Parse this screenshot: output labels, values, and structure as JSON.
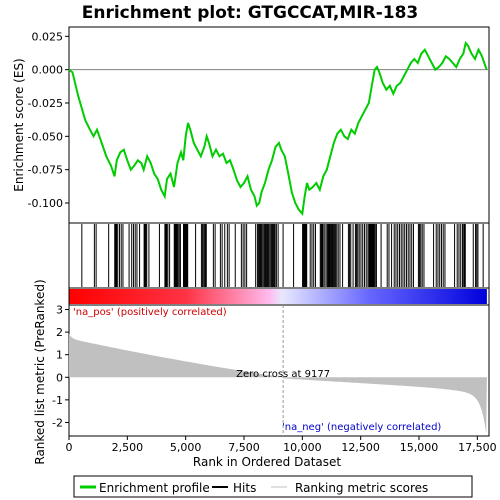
{
  "chart_data": {
    "type": "line",
    "title": "Enrichment plot: GTGCCAT,MIR-183",
    "xlabel": "Rank in Ordered Dataset",
    "ylabel_top": "Enrichment score (ES)",
    "ylabel_bottom": "Ranked list metric (PreRanked)",
    "xlim": [
      0,
      18000
    ],
    "x_ticks": [
      0,
      2500,
      5000,
      7500,
      10000,
      12500,
      15000,
      17500
    ],
    "x_tick_labels": [
      "0",
      "2,500",
      "5,000",
      "7,500",
      "10,000",
      "12,500",
      "15,000",
      "17,500"
    ],
    "es_ylim": [
      -0.115,
      0.032
    ],
    "es_ticks": [
      0.025,
      0.0,
      -0.025,
      -0.05,
      -0.075,
      -0.1
    ],
    "es_tick_labels": [
      "0.025",
      "0.000",
      "-0.025",
      "-0.050",
      "-0.075",
      "-0.100"
    ],
    "metric_ylim": [
      -2.6,
      3.2
    ],
    "metric_ticks": [
      3,
      2,
      1,
      0,
      -1,
      -2
    ],
    "metric_tick_labels": [
      "3",
      "2",
      "1",
      "0",
      "-1",
      "-2"
    ],
    "es_profile": {
      "name": "Enrichment profile",
      "x": [
        0,
        150,
        400,
        700,
        900,
        1050,
        1200,
        1400,
        1600,
        1800,
        1950,
        2050,
        2200,
        2350,
        2500,
        2650,
        2800,
        2950,
        3100,
        3200,
        3350,
        3500,
        3650,
        3800,
        3950,
        4100,
        4200,
        4350,
        4500,
        4650,
        4800,
        4900,
        5000,
        5100,
        5200,
        5350,
        5500,
        5650,
        5800,
        5900,
        6000,
        6150,
        6300,
        6450,
        6600,
        6750,
        6900,
        7050,
        7200,
        7350,
        7500,
        7650,
        7800,
        7950,
        8050,
        8150,
        8250,
        8400,
        8550,
        8700,
        8850,
        9000,
        9100,
        9250,
        9400,
        9550,
        9700,
        9850,
        10000,
        10100,
        10200,
        10300,
        10450,
        10600,
        10750,
        10900,
        11050,
        11200,
        11350,
        11500,
        11650,
        11800,
        11950,
        12100,
        12250,
        12400,
        12550,
        12700,
        12850,
        13000,
        13100,
        13200,
        13300,
        13450,
        13600,
        13750,
        13900,
        14050,
        14200,
        14350,
        14500,
        14650,
        14800,
        14950,
        15100,
        15250,
        15400,
        15550,
        15700,
        15850,
        16000,
        16150,
        16300,
        16450,
        16600,
        16750,
        16900,
        17000,
        17100,
        17250,
        17400,
        17550,
        17700,
        17800,
        17900
      ],
      "es": [
        0.0,
        -0.002,
        -0.02,
        -0.038,
        -0.045,
        -0.05,
        -0.045,
        -0.055,
        -0.065,
        -0.072,
        -0.08,
        -0.068,
        -0.062,
        -0.06,
        -0.068,
        -0.075,
        -0.072,
        -0.068,
        -0.07,
        -0.075,
        -0.065,
        -0.07,
        -0.078,
        -0.082,
        -0.09,
        -0.095,
        -0.082,
        -0.078,
        -0.088,
        -0.07,
        -0.062,
        -0.068,
        -0.05,
        -0.04,
        -0.045,
        -0.055,
        -0.06,
        -0.065,
        -0.058,
        -0.05,
        -0.055,
        -0.065,
        -0.06,
        -0.065,
        -0.063,
        -0.07,
        -0.068,
        -0.075,
        -0.083,
        -0.088,
        -0.085,
        -0.08,
        -0.09,
        -0.095,
        -0.102,
        -0.1,
        -0.092,
        -0.085,
        -0.075,
        -0.068,
        -0.058,
        -0.055,
        -0.06,
        -0.065,
        -0.078,
        -0.092,
        -0.1,
        -0.105,
        -0.108,
        -0.095,
        -0.085,
        -0.09,
        -0.088,
        -0.085,
        -0.09,
        -0.08,
        -0.075,
        -0.065,
        -0.055,
        -0.048,
        -0.045,
        -0.05,
        -0.052,
        -0.045,
        -0.048,
        -0.04,
        -0.035,
        -0.03,
        -0.025,
        -0.01,
        0.0,
        0.002,
        -0.002,
        -0.01,
        -0.015,
        -0.012,
        -0.018,
        -0.012,
        -0.01,
        -0.005,
        0.0,
        0.005,
        0.008,
        0.005,
        0.012,
        0.015,
        0.01,
        0.005,
        0.0,
        0.002,
        0.005,
        0.01,
        0.008,
        0.005,
        0.002,
        0.008,
        0.012,
        0.02,
        0.018,
        0.012,
        0.008,
        0.015,
        0.01,
        0.005,
        0.0
      ]
    },
    "hits_label": "Hits",
    "metric_label": "Ranking metric scores",
    "zero_cross_rank": 9177,
    "zero_cross_label": "Zero cross at 9177",
    "pos_label": "'na_pos' (positively correlated)",
    "neg_label": "'na_neg' (negatively correlated)",
    "colors": {
      "es_line": "#00cc00",
      "hits": "#000000",
      "metric_fill": "#c0c0c0",
      "pos_text": "#cc0000",
      "neg_text": "#0000cc",
      "bar_pos": "#ff0000",
      "bar_neg": "#0000ff"
    }
  }
}
